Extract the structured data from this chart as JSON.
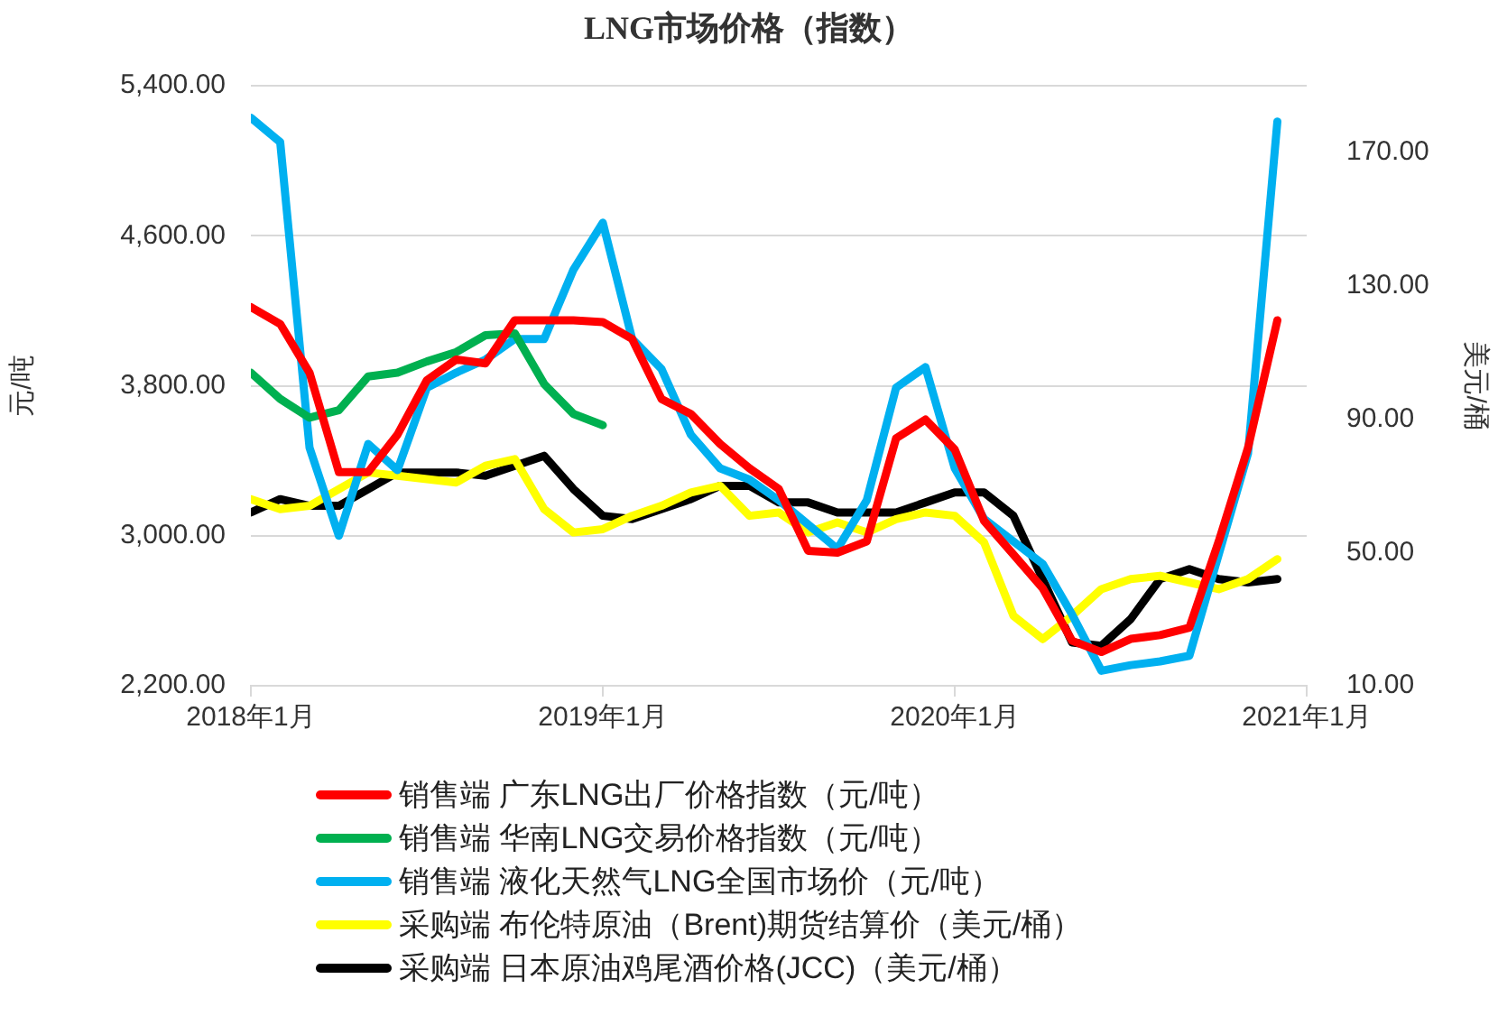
{
  "chart_data": {
    "type": "line",
    "title": "LNG市场价格（指数）",
    "ylabel": "元/吨",
    "y2label": "美元/桶",
    "x": [
      "2018-01",
      "2018-02",
      "2018-03",
      "2018-04",
      "2018-05",
      "2018-06",
      "2018-07",
      "2018-08",
      "2018-09",
      "2018-10",
      "2018-11",
      "2018-12",
      "2019-01",
      "2019-02",
      "2019-03",
      "2019-04",
      "2019-05",
      "2019-06",
      "2019-07",
      "2019-08",
      "2019-09",
      "2019-10",
      "2019-11",
      "2019-12",
      "2020-01",
      "2020-02",
      "2020-03",
      "2020-04",
      "2020-05",
      "2020-06",
      "2020-07",
      "2020-08",
      "2020-09",
      "2020-10",
      "2020-11",
      "2020-12"
    ],
    "xlim": [
      "2018-01",
      "2021-01"
    ],
    "xticks": [
      {
        "value": "2018-01",
        "label": "2018年1月"
      },
      {
        "value": "2019-01",
        "label": "2019年1月"
      },
      {
        "value": "2020-01",
        "label": "2020年1月"
      },
      {
        "value": "2021-01",
        "label": "2021年1月"
      }
    ],
    "ylim": [
      2200,
      5400
    ],
    "yticks": [
      {
        "value": 2200,
        "label": "2,200.00"
      },
      {
        "value": 3000,
        "label": "3,000.00"
      },
      {
        "value": 3800,
        "label": "3,800.00"
      },
      {
        "value": 4600,
        "label": "4,600.00"
      },
      {
        "value": 5400,
        "label": "5,400.00"
      }
    ],
    "y2lim": [
      10,
      190
    ],
    "y2ticks": [
      {
        "value": 10,
        "label": "10.00"
      },
      {
        "value": 50,
        "label": "50.00"
      },
      {
        "value": 90,
        "label": "90.00"
      },
      {
        "value": 130,
        "label": "130.00"
      },
      {
        "value": 170,
        "label": "170.00"
      }
    ],
    "grid": "y",
    "legend": "bottom",
    "marker": "none",
    "line_style": "solid",
    "series": [
      {
        "name": "销售端 广东LNG出厂价格指数（元/吨）",
        "color": "#ff0000",
        "values": [
          4220,
          4130,
          3870,
          3340,
          3340,
          3540,
          3830,
          3940,
          3920,
          4150,
          4150,
          4150,
          4140,
          4050,
          3730,
          3650,
          3490,
          3360,
          3250,
          2920,
          2910,
          2970,
          3520,
          3620,
          3460,
          3080,
          2900,
          2720,
          2440,
          2380,
          2450,
          2470,
          2510,
          2970,
          3470,
          4150
        ]
      },
      {
        "name": "销售端 华南LNG交易价格指数（元/吨）",
        "color": "#00b050",
        "values": [
          3870,
          3730,
          3630,
          3670,
          3850,
          3870,
          3930,
          3980,
          4070,
          4080,
          3810,
          3650,
          3590,
          null,
          null,
          null,
          null,
          null,
          null,
          null,
          null,
          null,
          null,
          null,
          null,
          null,
          null,
          null,
          null,
          null,
          null,
          null,
          null,
          null,
          null,
          null
        ]
      },
      {
        "name": "销售端 液化天然气LNG全国市场价（元/吨）",
        "color": "#00b0f0",
        "values": [
          5230,
          5100,
          3470,
          3000,
          3490,
          3350,
          3790,
          3870,
          3940,
          4050,
          4050,
          4420,
          4670,
          4050,
          3890,
          3540,
          3360,
          3300,
          3190,
          3060,
          2930,
          3190,
          3790,
          3900,
          3360,
          3090,
          2970,
          2850,
          2580,
          2280,
          2310,
          2330,
          2360,
          2900,
          3440,
          5210
        ]
      },
      {
        "name": "采购端 布伦特原油（Brent)期货结算价（美元/桶）",
        "color": "#ffff00",
        "axis": "y2",
        "values": [
          66,
          63,
          64,
          69,
          74,
          73,
          72,
          71,
          76,
          78,
          63,
          56,
          57,
          61,
          64,
          68,
          70,
          61,
          62,
          56,
          59,
          56,
          60,
          62,
          61,
          53,
          31,
          24,
          31,
          39,
          42,
          43,
          41,
          39,
          42,
          48
        ]
      },
      {
        "name": "采购端 日本原油鸡尾酒价格(JCC)（美元/桶）",
        "color": "#000000",
        "axis": "y2",
        "values": [
          62,
          66,
          64,
          64,
          69,
          74,
          74,
          74,
          73,
          76,
          79,
          69,
          61,
          60,
          63,
          66,
          70,
          70,
          65,
          65,
          62,
          62,
          62,
          65,
          68,
          68,
          61,
          42,
          23,
          22,
          30,
          42,
          45,
          42,
          41,
          42
        ]
      }
    ]
  }
}
